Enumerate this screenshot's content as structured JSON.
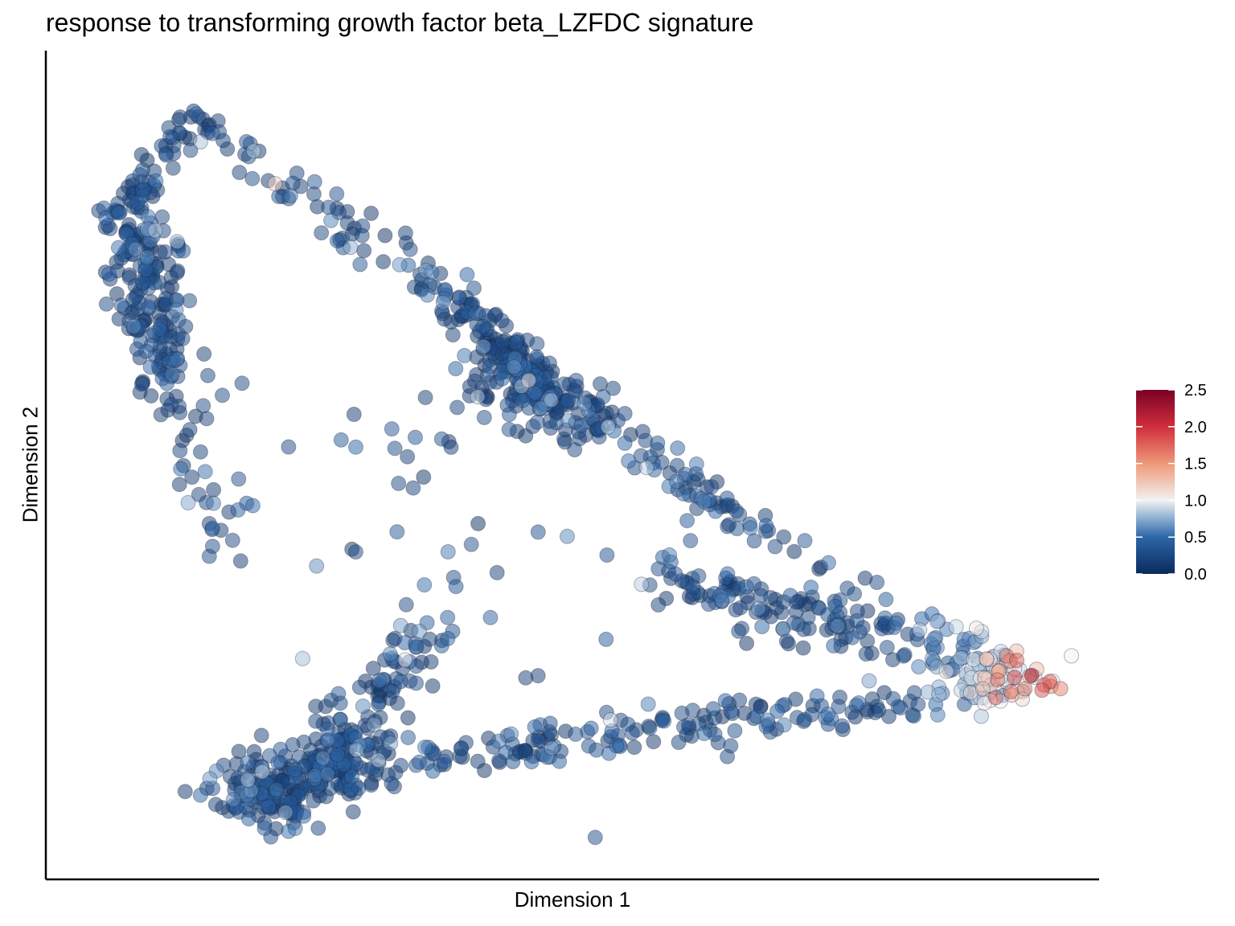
{
  "chart_data": {
    "type": "scatter",
    "title": "response to transforming growth factor beta_LZFDC signature",
    "xlabel": "Dimension 1",
    "ylabel": "Dimension 2",
    "xlim": [
      0,
      100
    ],
    "ylim": [
      0,
      100
    ],
    "grid": false,
    "axis_ticks": false,
    "colorbar": {
      "title": "",
      "position": "right",
      "min": 0.0,
      "max": 2.5,
      "ticks": [
        "2.5",
        "2.0",
        "1.5",
        "1.0",
        "0.5",
        "0.0"
      ],
      "tick_values": [
        2.5,
        2.0,
        1.5,
        1.0,
        0.5,
        0.0
      ],
      "stops": [
        {
          "value": 0.0,
          "color": "#0a2a5c"
        },
        {
          "value": 0.5,
          "color": "#2d66a8"
        },
        {
          "value": 0.8,
          "color": "#9dbbd8"
        },
        {
          "value": 1.0,
          "color": "#f2f2f2"
        },
        {
          "value": 1.5,
          "color": "#ef9878"
        },
        {
          "value": 2.0,
          "color": "#cf2e3c"
        },
        {
          "value": 2.5,
          "color": "#7a0024"
        }
      ]
    },
    "segments": [
      {
        "name": "top-left-arm",
        "from": [
          10,
          95
        ],
        "to": [
          4,
          82
        ],
        "n": 60,
        "spread": 1.2
      },
      {
        "name": "left-arm",
        "from": [
          5,
          82
        ],
        "to": [
          8,
          62
        ],
        "n": 170,
        "spread": 1.6
      },
      {
        "name": "left-lower",
        "from": [
          8,
          62
        ],
        "to": [
          14,
          40
        ],
        "n": 45,
        "spread": 1.5
      },
      {
        "name": "top-right-arm",
        "from": [
          10,
          95
        ],
        "to": [
          37,
          72
        ],
        "n": 75,
        "spread": 1.3
      },
      {
        "name": "middle-stream",
        "from": [
          37,
          72
        ],
        "to": [
          47,
          58
        ],
        "n": 110,
        "spread": 1.2
      },
      {
        "name": "middle-blob",
        "from": [
          40,
          63
        ],
        "to": [
          50,
          57
        ],
        "n": 150,
        "spread": 2.2
      },
      {
        "name": "upper-diagonal",
        "from": [
          50,
          57
        ],
        "to": [
          68,
          42
        ],
        "n": 45,
        "spread": 1.1
      },
      {
        "name": "upper-edge",
        "from": [
          58,
          48
        ],
        "to": [
          96,
          22
        ],
        "n": 50,
        "spread": 1.0
      },
      {
        "name": "right-wing",
        "from": [
          58,
          36
        ],
        "to": [
          96,
          22
        ],
        "n": 190,
        "spread": 2.0
      },
      {
        "name": "bottom-cluster",
        "from": [
          15,
          6
        ],
        "to": [
          28,
          13
        ],
        "n": 230,
        "spread": 2.5
      },
      {
        "name": "bottom-edge",
        "from": [
          22,
          10
        ],
        "to": [
          96,
          22
        ],
        "n": 230,
        "spread": 1.4
      },
      {
        "name": "inner-branch",
        "from": [
          25,
          13
        ],
        "to": [
          34,
          28
        ],
        "n": 75,
        "spread": 1.6
      },
      {
        "name": "sparse-interior",
        "from": [
          15,
          55
        ],
        "to": [
          55,
          25
        ],
        "n": 45,
        "spread": 9.0
      }
    ],
    "value_trend": "mostly 0.0–0.5 (dark blue); rising toward 1.0–2.5 at the far-right tip near Dimension 1 ≈ 90–96",
    "point_opacity": 0.5,
    "point_edge_color": "#1a2540"
  }
}
